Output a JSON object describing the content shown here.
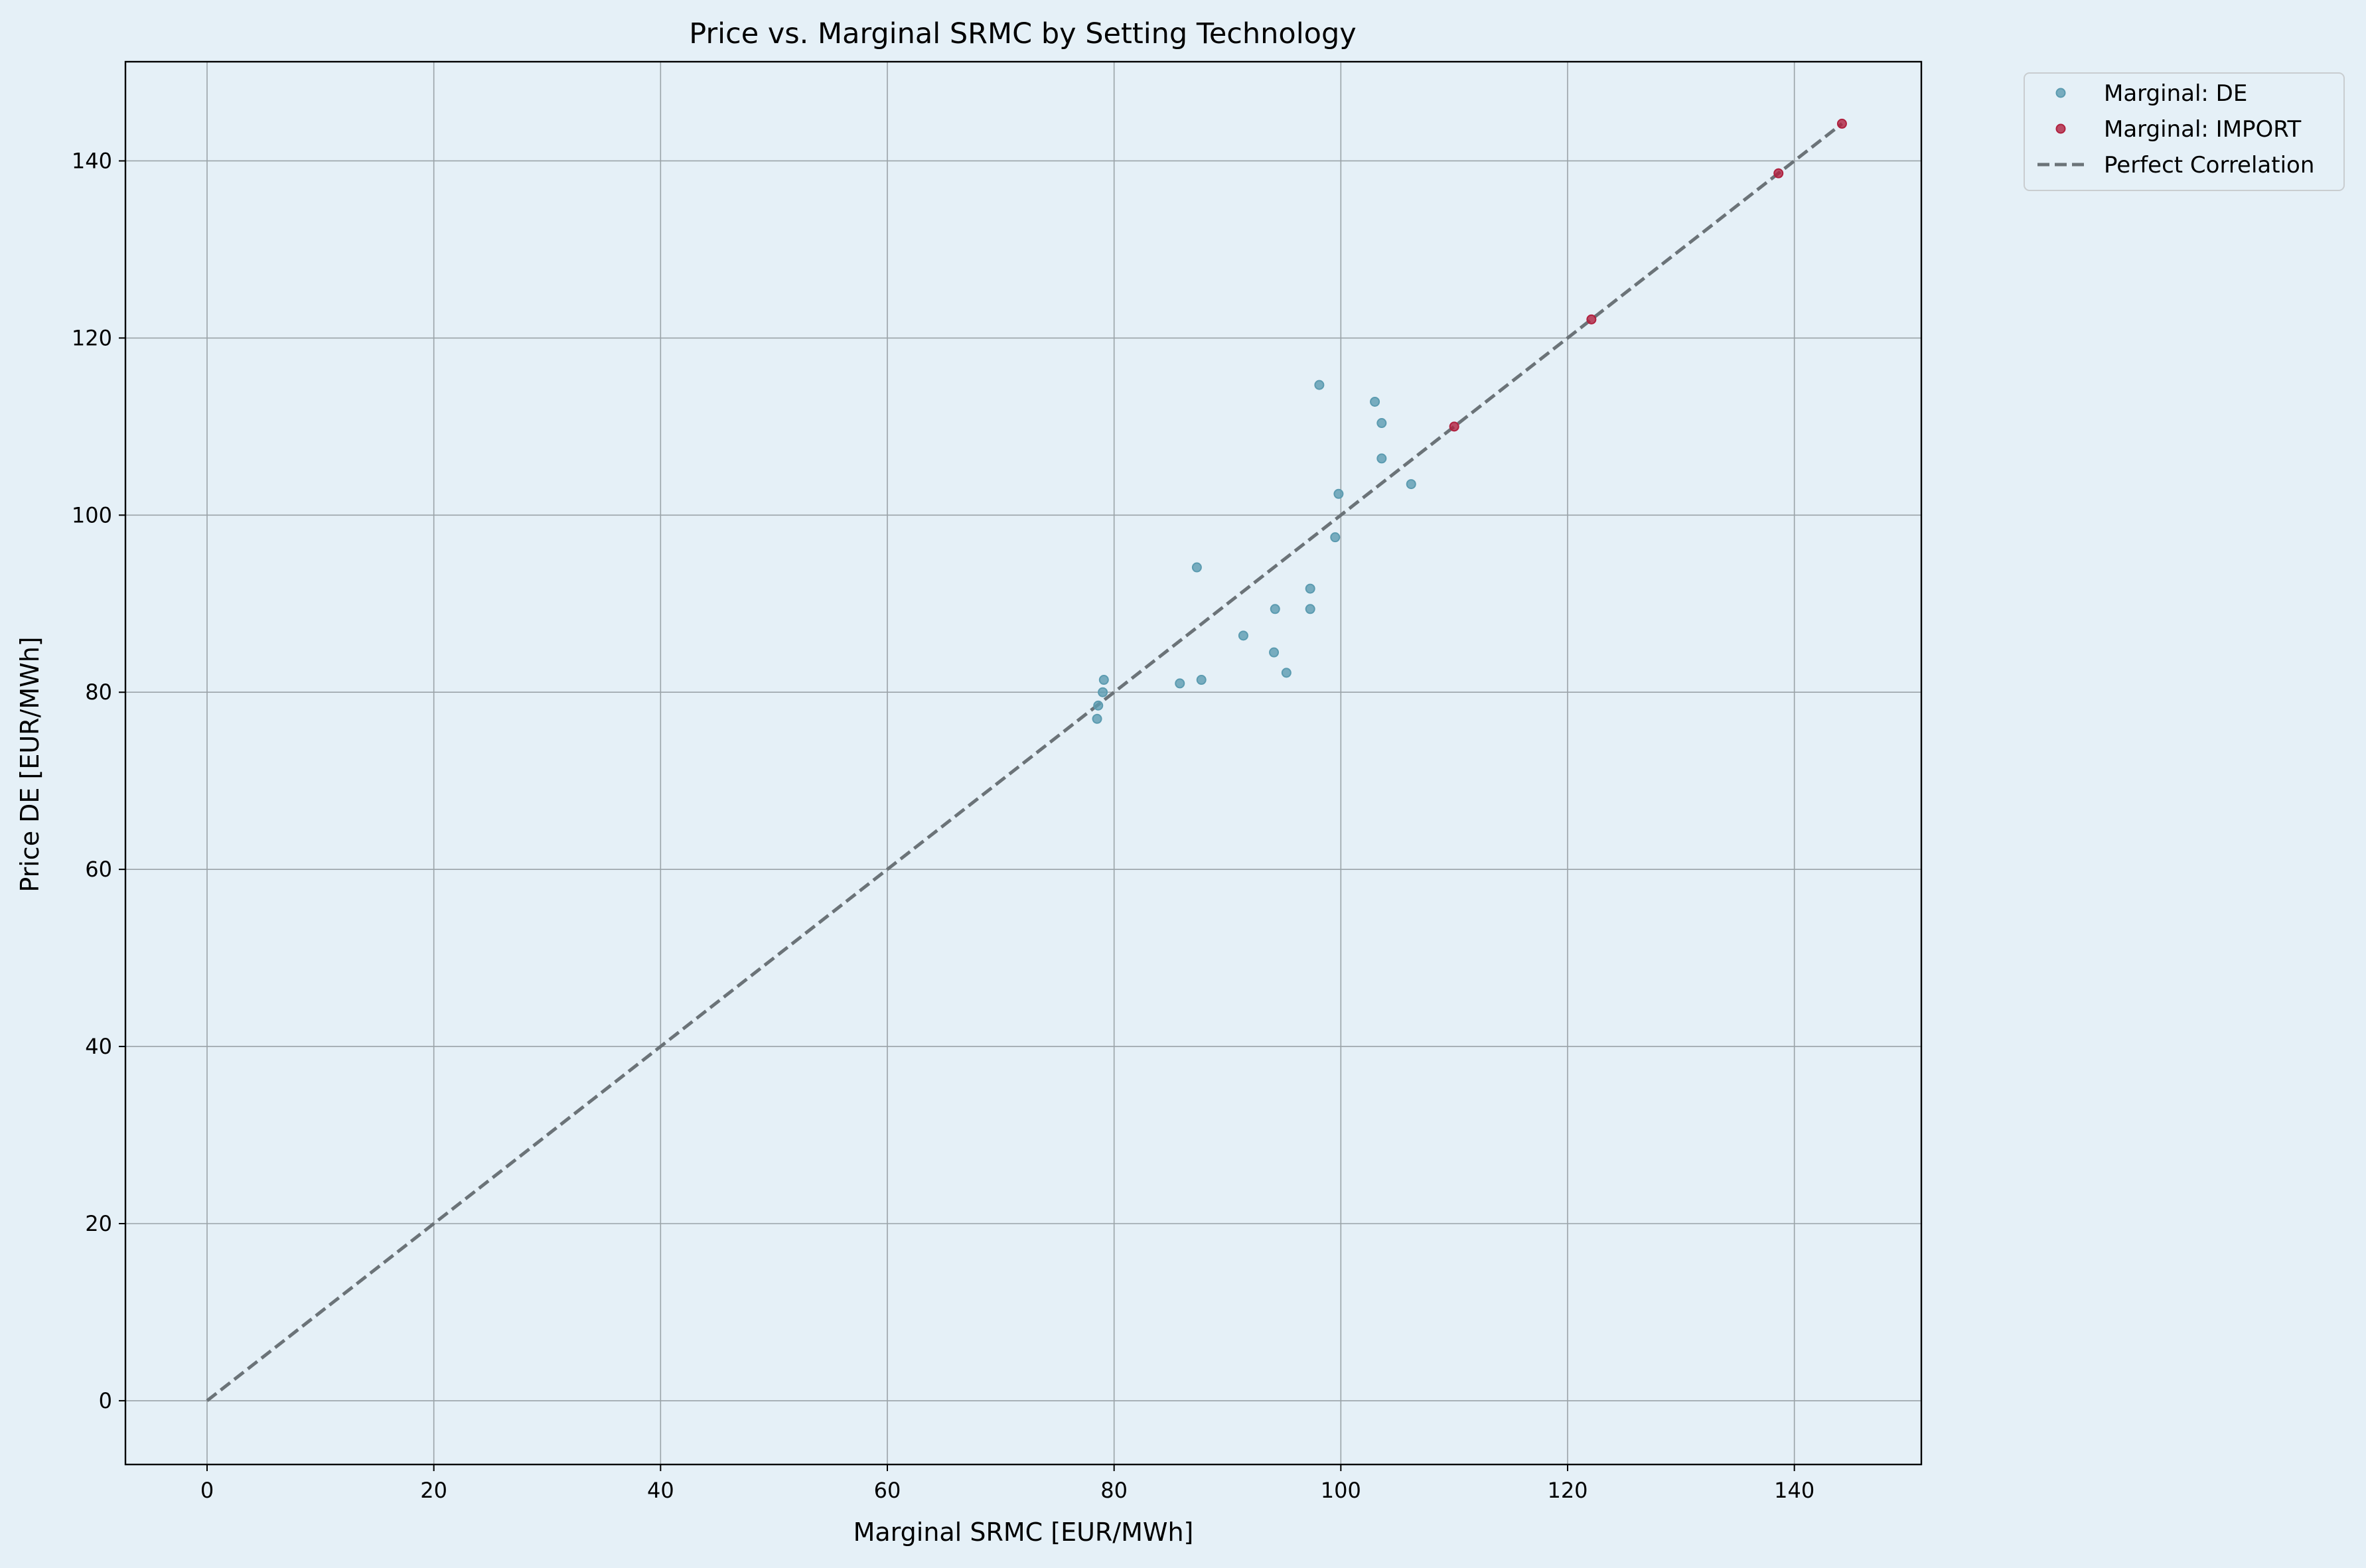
{
  "chart_data": {
    "type": "scatter",
    "title": "Price vs. Marginal SRMC by Setting Technology",
    "xlabel": "Marginal SRMC [EUR/MWh]",
    "ylabel": "Price DE [EUR/MWh]",
    "xlim": [
      -7.2,
      151.2
    ],
    "ylim": [
      -7.2,
      151.2
    ],
    "xticks": [
      0,
      20,
      40,
      60,
      80,
      100,
      120,
      140
    ],
    "yticks": [
      0,
      20,
      40,
      60,
      80,
      100,
      120,
      140
    ],
    "grid": true,
    "legend_position": "outside-top-right",
    "series": [
      {
        "name": "Marginal: DE",
        "kind": "scatter",
        "color": "#5b9bb0",
        "points": [
          {
            "x": 78.5,
            "y": 77.0
          },
          {
            "x": 78.6,
            "y": 78.5
          },
          {
            "x": 79.0,
            "y": 80.0
          },
          {
            "x": 79.1,
            "y": 81.4
          },
          {
            "x": 85.8,
            "y": 81.0
          },
          {
            "x": 87.3,
            "y": 94.1
          },
          {
            "x": 87.7,
            "y": 81.4
          },
          {
            "x": 91.4,
            "y": 86.4
          },
          {
            "x": 94.1,
            "y": 84.5
          },
          {
            "x": 94.2,
            "y": 89.4
          },
          {
            "x": 95.2,
            "y": 82.2
          },
          {
            "x": 97.3,
            "y": 89.4
          },
          {
            "x": 97.3,
            "y": 91.7
          },
          {
            "x": 98.1,
            "y": 114.7
          },
          {
            "x": 99.5,
            "y": 97.5
          },
          {
            "x": 99.8,
            "y": 102.4
          },
          {
            "x": 103.0,
            "y": 112.8
          },
          {
            "x": 103.6,
            "y": 110.4
          },
          {
            "x": 103.6,
            "y": 106.4
          },
          {
            "x": 106.2,
            "y": 103.5
          }
        ]
      },
      {
        "name": "Marginal: IMPORT",
        "kind": "scatter",
        "color": "#b0203e",
        "points": [
          {
            "x": 110.0,
            "y": 110.0
          },
          {
            "x": 122.1,
            "y": 122.1
          },
          {
            "x": 138.6,
            "y": 138.6
          },
          {
            "x": 144.2,
            "y": 144.2
          }
        ]
      },
      {
        "name": "Perfect Correlation",
        "kind": "line",
        "style": "dashed",
        "color": "#6b7378",
        "points": [
          {
            "x": 0,
            "y": 0
          },
          {
            "x": 144.2,
            "y": 144.2
          }
        ]
      }
    ]
  }
}
